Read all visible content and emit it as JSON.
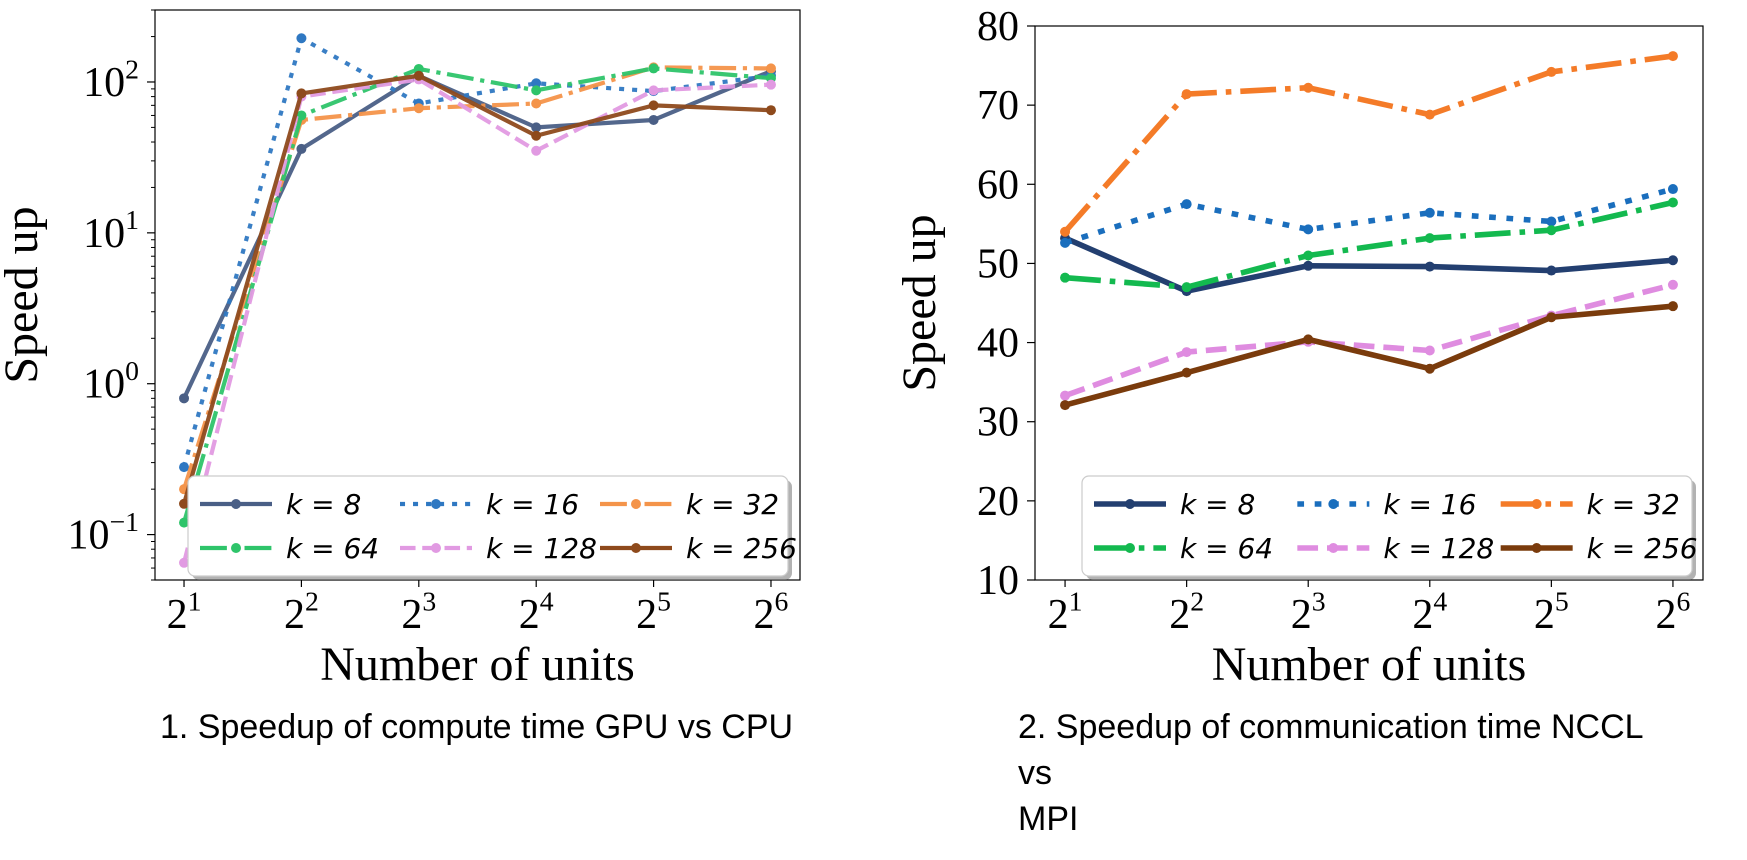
{
  "chart_data": [
    {
      "type": "line",
      "caption": "1. Speedup of compute time GPU vs CPU",
      "xlabel": "Number of units",
      "ylabel": "Speed up",
      "x": [
        2,
        4,
        8,
        16,
        32,
        64
      ],
      "x_tick_labels": [
        {
          "base": "2",
          "exp": "1"
        },
        {
          "base": "2",
          "exp": "2"
        },
        {
          "base": "2",
          "exp": "3"
        },
        {
          "base": "2",
          "exp": "4"
        },
        {
          "base": "2",
          "exp": "5"
        },
        {
          "base": "2",
          "exp": "6"
        }
      ],
      "y_scale": "log",
      "ylim": [
        0.05,
        300
      ],
      "y_tick_labels": [
        {
          "value": 0.1,
          "base": "10",
          "exp": "−1"
        },
        {
          "value": 1,
          "base": "10",
          "exp": "0"
        },
        {
          "value": 10,
          "base": "10",
          "exp": "1"
        },
        {
          "value": 100,
          "base": "10",
          "exp": "2"
        }
      ],
      "grid": false,
      "legend": {
        "placement": "lower-right",
        "columns": 3
      },
      "series": [
        {
          "name": "k = 8",
          "color": "#4a5f86",
          "dash": "solid",
          "values": [
            0.8,
            36,
            110,
            50,
            56,
            118
          ]
        },
        {
          "name": "k = 16",
          "color": "#2f78c2",
          "dash": "dotted",
          "values": [
            0.28,
            195,
            72,
            98,
            87,
            110
          ]
        },
        {
          "name": "k = 32",
          "color": "#f4944a",
          "dash": "dashdot",
          "values": [
            0.2,
            56,
            67,
            72,
            125,
            123
          ]
        },
        {
          "name": "k = 64",
          "color": "#2ec46a",
          "dash": "dashdot",
          "values": [
            0.12,
            60,
            122,
            88,
            123,
            106
          ]
        },
        {
          "name": "k = 128",
          "color": "#e19ae2",
          "dash": "dashed",
          "values": [
            0.065,
            80,
            104,
            35,
            88,
            96
          ]
        },
        {
          "name": "k = 256",
          "color": "#8e4a1c",
          "dash": "solid",
          "values": [
            0.16,
            84,
            110,
            44,
            70,
            65
          ]
        }
      ]
    },
    {
      "type": "line",
      "caption": "2. Speedup of communication time NCCL vs MPI",
      "caption_lines": [
        "2. Speedup of communication time NCCL",
        "vs",
        "MPI"
      ],
      "xlabel": "Number of units",
      "ylabel": "Speed up",
      "x": [
        2,
        4,
        8,
        16,
        32,
        64
      ],
      "x_tick_labels": [
        {
          "base": "2",
          "exp": "1"
        },
        {
          "base": "2",
          "exp": "2"
        },
        {
          "base": "2",
          "exp": "3"
        },
        {
          "base": "2",
          "exp": "4"
        },
        {
          "base": "2",
          "exp": "5"
        },
        {
          "base": "2",
          "exp": "6"
        }
      ],
      "y_scale": "linear",
      "ylim": [
        10,
        80
      ],
      "y_ticks": [
        10,
        20,
        30,
        40,
        50,
        60,
        70,
        80
      ],
      "grid": false,
      "legend": {
        "placement": "lower-right",
        "columns": 3
      },
      "series": [
        {
          "name": "k = 8",
          "color": "#233f70",
          "dash": "solid",
          "values": [
            53.2,
            46.5,
            49.7,
            49.6,
            49.1,
            50.4
          ]
        },
        {
          "name": "k = 16",
          "color": "#1a6ebd",
          "dash": "dotted",
          "values": [
            52.6,
            57.5,
            54.3,
            56.4,
            55.3,
            59.4
          ]
        },
        {
          "name": "k = 32",
          "color": "#f47b28",
          "dash": "dashdot",
          "values": [
            54.0,
            71.4,
            72.2,
            68.8,
            74.2,
            76.2
          ]
        },
        {
          "name": "k = 64",
          "color": "#13b94f",
          "dash": "dashdot",
          "values": [
            48.2,
            47.0,
            51.0,
            53.2,
            54.2,
            57.7
          ]
        },
        {
          "name": "k = 128",
          "color": "#df8ce0",
          "dash": "dashed",
          "values": [
            33.3,
            38.8,
            40.1,
            39.0,
            43.4,
            47.3
          ]
        },
        {
          "name": "k = 256",
          "color": "#7a3b0c",
          "dash": "solid",
          "values": [
            32.1,
            36.2,
            40.4,
            36.7,
            43.2,
            44.6
          ]
        }
      ]
    }
  ]
}
